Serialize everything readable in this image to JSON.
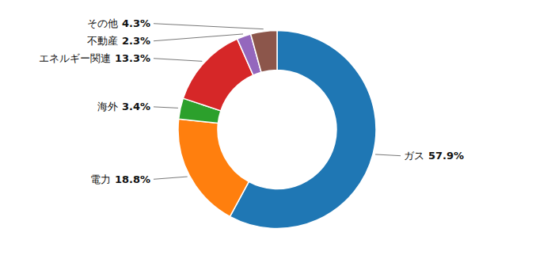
{
  "chart_data": {
    "type": "donut",
    "categories": [
      "ガス",
      "電力",
      "海外",
      "エネルギー関連",
      "不動産",
      "その他"
    ],
    "values": [
      57.9,
      18.8,
      3.4,
      13.3,
      2.3,
      4.3
    ],
    "value_labels": [
      "57.9%",
      "18.8%",
      "3.4%",
      "13.3%",
      "2.3%",
      "4.3%"
    ],
    "data_labels": true
  }
}
